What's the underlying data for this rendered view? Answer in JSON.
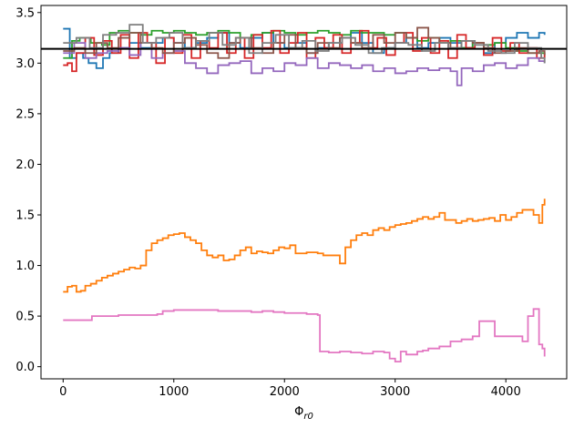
{
  "chart_data": {
    "type": "line",
    "title": "",
    "xlabel": "Φ_r0",
    "xlabel_main": "Φ",
    "xlabel_sub": "r0",
    "ylabel": "",
    "xlim": [
      -200,
      4550
    ],
    "ylim": [
      -0.12,
      3.57
    ],
    "x_ticks": [
      0,
      1000,
      2000,
      3000,
      4000
    ],
    "y_ticks": [
      0.0,
      0.5,
      1.0,
      1.5,
      2.0,
      2.5,
      3.0,
      3.5
    ],
    "x_tick_labels": [
      "0",
      "1000",
      "2000",
      "3000",
      "4000"
    ],
    "y_tick_labels": [
      "0.0",
      "0.5",
      "1.0",
      "1.5",
      "2.0",
      "2.5",
      "3.0",
      "3.5"
    ],
    "grid": false,
    "legend": "none",
    "hline": {
      "y": 3.14159,
      "color": "#000000"
    },
    "series": [
      {
        "color": "#1f77b4",
        "step": true,
        "x": [
          0,
          60,
          120,
          180,
          230,
          300,
          360,
          420,
          500,
          600,
          700,
          800,
          900,
          1000,
          1100,
          1200,
          1300,
          1400,
          1500,
          1600,
          1700,
          1800,
          1900,
          2000,
          2100,
          2200,
          2300,
          2400,
          2500,
          2600,
          2700,
          2800,
          2900,
          3000,
          3100,
          3200,
          3300,
          3400,
          3500,
          3600,
          3700,
          3800,
          3900,
          4000,
          4100,
          4200,
          4300,
          4350
        ],
        "y": [
          3.34,
          3.05,
          3.1,
          3.05,
          3.0,
          2.95,
          3.05,
          3.1,
          3.15,
          3.2,
          3.15,
          3.2,
          3.25,
          3.2,
          3.15,
          3.2,
          3.25,
          3.3,
          3.2,
          3.15,
          3.25,
          3.3,
          3.2,
          3.15,
          3.2,
          3.1,
          3.15,
          3.2,
          3.25,
          3.3,
          3.2,
          3.1,
          3.15,
          3.2,
          3.25,
          3.15,
          3.2,
          3.25,
          3.2,
          3.15,
          3.2,
          3.1,
          3.2,
          3.25,
          3.3,
          3.25,
          3.3,
          3.28
        ]
      },
      {
        "color": "#ff7f0e",
        "step": true,
        "x": [
          0,
          40,
          80,
          120,
          160,
          200,
          250,
          300,
          350,
          400,
          450,
          500,
          550,
          600,
          650,
          700,
          750,
          800,
          850,
          900,
          950,
          1000,
          1050,
          1100,
          1150,
          1200,
          1250,
          1300,
          1350,
          1400,
          1450,
          1500,
          1550,
          1600,
          1650,
          1700,
          1750,
          1800,
          1850,
          1900,
          1950,
          2000,
          2050,
          2100,
          2150,
          2200,
          2250,
          2300,
          2350,
          2400,
          2450,
          2500,
          2550,
          2600,
          2650,
          2700,
          2750,
          2800,
          2850,
          2900,
          2950,
          3000,
          3050,
          3100,
          3150,
          3200,
          3250,
          3300,
          3350,
          3400,
          3450,
          3500,
          3550,
          3600,
          3650,
          3700,
          3750,
          3800,
          3850,
          3900,
          3950,
          4000,
          4050,
          4100,
          4150,
          4200,
          4250,
          4300,
          4330,
          4350
        ],
        "y": [
          0.74,
          0.79,
          0.8,
          0.74,
          0.75,
          0.8,
          0.82,
          0.85,
          0.88,
          0.9,
          0.92,
          0.94,
          0.96,
          0.98,
          0.97,
          1.0,
          1.15,
          1.22,
          1.25,
          1.27,
          1.3,
          1.31,
          1.32,
          1.28,
          1.25,
          1.22,
          1.15,
          1.1,
          1.08,
          1.1,
          1.05,
          1.06,
          1.1,
          1.15,
          1.18,
          1.12,
          1.14,
          1.13,
          1.12,
          1.15,
          1.18,
          1.17,
          1.2,
          1.12,
          1.12,
          1.13,
          1.13,
          1.12,
          1.1,
          1.1,
          1.1,
          1.02,
          1.18,
          1.25,
          1.3,
          1.32,
          1.3,
          1.35,
          1.37,
          1.35,
          1.38,
          1.4,
          1.41,
          1.42,
          1.44,
          1.46,
          1.48,
          1.46,
          1.48,
          1.52,
          1.45,
          1.45,
          1.42,
          1.44,
          1.46,
          1.44,
          1.45,
          1.46,
          1.47,
          1.44,
          1.5,
          1.45,
          1.48,
          1.52,
          1.55,
          1.55,
          1.5,
          1.42,
          1.6,
          1.66
        ]
      },
      {
        "color": "#2ca02c",
        "step": true,
        "x": [
          0,
          80,
          150,
          250,
          350,
          420,
          500,
          600,
          700,
          800,
          900,
          1000,
          1100,
          1200,
          1300,
          1400,
          1500,
          1600,
          1700,
          1800,
          1900,
          2000,
          2100,
          2200,
          2300,
          2400,
          2500,
          2600,
          2700,
          2800,
          2900,
          3000,
          3100,
          3200,
          3300,
          3400,
          3500,
          3600,
          3700,
          3800,
          3900,
          4000,
          4100,
          4200,
          4300,
          4350
        ],
        "y": [
          3.05,
          3.22,
          3.25,
          3.2,
          3.18,
          3.3,
          3.32,
          3.3,
          3.28,
          3.32,
          3.3,
          3.32,
          3.3,
          3.28,
          3.3,
          3.32,
          3.3,
          3.25,
          3.28,
          3.3,
          3.32,
          3.3,
          3.28,
          3.3,
          3.32,
          3.3,
          3.28,
          3.32,
          3.3,
          3.3,
          3.28,
          3.3,
          3.25,
          3.22,
          3.25,
          3.2,
          3.22,
          3.15,
          3.2,
          3.18,
          3.2,
          3.15,
          3.12,
          3.1,
          3.1,
          3.08
        ]
      },
      {
        "color": "#d62728",
        "step": true,
        "x": [
          0,
          40,
          80,
          120,
          200,
          280,
          360,
          440,
          520,
          600,
          680,
          760,
          840,
          920,
          1000,
          1080,
          1160,
          1240,
          1320,
          1400,
          1480,
          1560,
          1640,
          1720,
          1800,
          1880,
          1960,
          2040,
          2120,
          2200,
          2280,
          2360,
          2440,
          2520,
          2600,
          2680,
          2760,
          2840,
          2920,
          3000,
          3080,
          3160,
          3240,
          3320,
          3400,
          3480,
          3560,
          3640,
          3720,
          3800,
          3880,
          3960,
          4040,
          4120,
          4200,
          4280,
          4350
        ],
        "y": [
          2.98,
          3.0,
          2.92,
          3.1,
          3.25,
          3.08,
          3.22,
          3.1,
          3.28,
          3.05,
          3.3,
          3.2,
          3.0,
          3.25,
          3.1,
          3.28,
          3.05,
          3.22,
          3.15,
          3.3,
          3.1,
          3.25,
          3.05,
          3.28,
          3.15,
          3.32,
          3.1,
          3.2,
          3.3,
          3.05,
          3.25,
          3.15,
          3.28,
          3.1,
          3.2,
          3.32,
          3.15,
          3.25,
          3.08,
          3.2,
          3.3,
          3.12,
          3.25,
          3.1,
          3.22,
          3.05,
          3.28,
          3.15,
          3.2,
          3.08,
          3.25,
          3.12,
          3.2,
          3.1,
          3.15,
          3.05,
          3.1
        ]
      },
      {
        "color": "#9467bd",
        "step": true,
        "x": [
          0,
          100,
          200,
          300,
          400,
          500,
          600,
          700,
          800,
          900,
          1000,
          1100,
          1200,
          1300,
          1400,
          1500,
          1600,
          1700,
          1800,
          1900,
          2000,
          2100,
          2200,
          2300,
          2400,
          2500,
          2600,
          2700,
          2800,
          2900,
          3000,
          3100,
          3200,
          3300,
          3400,
          3500,
          3560,
          3600,
          3700,
          3800,
          3900,
          4000,
          4100,
          4200,
          4300,
          4350
        ],
        "y": [
          3.1,
          3.2,
          3.05,
          3.1,
          3.12,
          3.15,
          3.08,
          3.2,
          3.05,
          3.1,
          3.12,
          3.0,
          2.95,
          2.9,
          2.98,
          3.0,
          3.02,
          2.9,
          2.95,
          2.92,
          3.0,
          2.98,
          3.05,
          2.95,
          3.0,
          2.98,
          2.95,
          2.98,
          2.92,
          2.95,
          2.9,
          2.92,
          2.95,
          2.93,
          2.95,
          2.92,
          2.78,
          2.95,
          2.92,
          2.98,
          3.0,
          2.95,
          2.98,
          3.05,
          3.02,
          3.0
        ]
      },
      {
        "color": "#8c564b",
        "step": true,
        "x": [
          0,
          100,
          200,
          300,
          400,
          500,
          600,
          700,
          800,
          900,
          1000,
          1100,
          1200,
          1300,
          1400,
          1500,
          1600,
          1700,
          1800,
          1900,
          2000,
          2100,
          2200,
          2300,
          2400,
          2500,
          2600,
          2700,
          2800,
          2900,
          3000,
          3100,
          3200,
          3300,
          3400,
          3500,
          3600,
          3700,
          3800,
          3900,
          4000,
          4100,
          4200,
          4300,
          4350
        ],
        "y": [
          3.12,
          3.15,
          3.1,
          3.2,
          3.15,
          3.25,
          3.3,
          3.2,
          3.15,
          3.1,
          3.2,
          3.25,
          3.18,
          3.1,
          3.05,
          3.2,
          3.25,
          3.15,
          3.1,
          3.2,
          3.28,
          3.15,
          3.1,
          3.2,
          3.15,
          3.25,
          3.2,
          3.15,
          3.28,
          3.2,
          3.3,
          3.25,
          3.35,
          3.25,
          3.2,
          3.15,
          3.22,
          3.2,
          3.15,
          3.1,
          3.12,
          3.15,
          3.1,
          3.12,
          3.08
        ]
      },
      {
        "color": "#e377c2",
        "step": true,
        "x": [
          0,
          200,
          260,
          500,
          850,
          900,
          1000,
          1100,
          1200,
          1300,
          1400,
          1500,
          1600,
          1700,
          1800,
          1900,
          2000,
          2100,
          2200,
          2300,
          2320,
          2400,
          2500,
          2600,
          2700,
          2800,
          2900,
          2950,
          3000,
          3050,
          3100,
          3200,
          3250,
          3300,
          3400,
          3500,
          3600,
          3700,
          3760,
          3800,
          3900,
          4000,
          4100,
          4150,
          4200,
          4250,
          4300,
          4330,
          4350
        ],
        "y": [
          0.46,
          0.46,
          0.5,
          0.51,
          0.52,
          0.55,
          0.56,
          0.56,
          0.56,
          0.56,
          0.55,
          0.55,
          0.55,
          0.54,
          0.55,
          0.54,
          0.53,
          0.53,
          0.52,
          0.51,
          0.15,
          0.14,
          0.15,
          0.14,
          0.13,
          0.15,
          0.14,
          0.08,
          0.05,
          0.15,
          0.12,
          0.15,
          0.16,
          0.18,
          0.2,
          0.25,
          0.27,
          0.3,
          0.45,
          0.45,
          0.3,
          0.3,
          0.3,
          0.25,
          0.5,
          0.57,
          0.22,
          0.18,
          0.1
        ]
      },
      {
        "color": "#7f7f7f",
        "step": true,
        "x": [
          0,
          120,
          240,
          360,
          480,
          600,
          720,
          840,
          960,
          1080,
          1200,
          1320,
          1440,
          1560,
          1680,
          1800,
          1920,
          2040,
          2160,
          2280,
          2400,
          2520,
          2640,
          2760,
          2880,
          3000,
          3120,
          3240,
          3360,
          3480,
          3600,
          3720,
          3840,
          3960,
          4080,
          4200,
          4320,
          4350
        ],
        "y": [
          3.2,
          3.25,
          3.15,
          3.28,
          3.3,
          3.38,
          3.2,
          3.25,
          3.3,
          3.15,
          3.22,
          3.3,
          3.18,
          3.25,
          3.1,
          3.2,
          3.28,
          3.15,
          3.22,
          3.12,
          3.2,
          3.25,
          3.18,
          3.1,
          3.15,
          3.2,
          3.18,
          3.12,
          3.2,
          3.15,
          3.22,
          3.18,
          3.12,
          3.1,
          3.2,
          3.15,
          3.05,
          3.0
        ]
      }
    ]
  }
}
